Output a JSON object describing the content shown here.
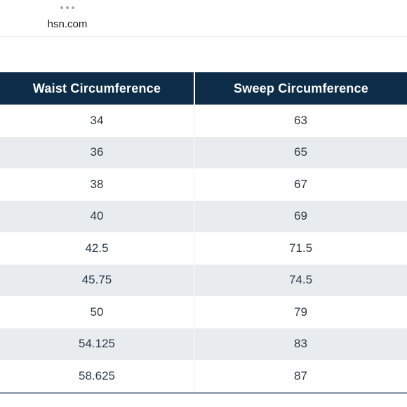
{
  "browser": {
    "domain": "hsn.com",
    "menu_icon": "more-horizontal-icon"
  },
  "table": {
    "headers": [
      "Waist Circumference",
      "Sweep Circumference"
    ],
    "rows": [
      [
        "34",
        "63"
      ],
      [
        "36",
        "65"
      ],
      [
        "38",
        "67"
      ],
      [
        "40",
        "69"
      ],
      [
        "42.5",
        "71.5"
      ],
      [
        "45.75",
        "74.5"
      ],
      [
        "50",
        "79"
      ],
      [
        "54.125",
        "83"
      ],
      [
        "58.625",
        "87"
      ]
    ]
  },
  "colors": {
    "header_bg": "#0d2c48",
    "header_text": "#ffffff",
    "stripe_bg": "#e8ecef",
    "cell_text": "#2a3a4a"
  }
}
